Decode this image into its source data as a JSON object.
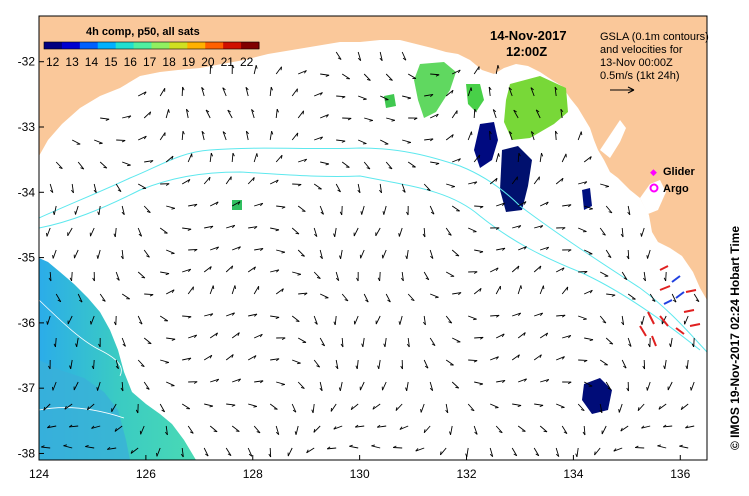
{
  "title": {
    "date": "14-Nov-2017",
    "time": "12:00Z"
  },
  "colorbar": {
    "title": "4h comp, p50, all sats",
    "ticks": [
      "12",
      "13",
      "14",
      "15",
      "16",
      "17",
      "18",
      "19",
      "20",
      "21",
      "22"
    ],
    "colors": [
      "#000080",
      "#0000d0",
      "#0060ff",
      "#00b0ff",
      "#20e0d0",
      "#50f0a0",
      "#90f060",
      "#d0e020",
      "#ffb000",
      "#ff6000",
      "#d01000",
      "#800000"
    ]
  },
  "legend": {
    "gsla_lines": [
      "GSLA (0.1m contours)",
      "and velocities for",
      "13-Nov 00:00Z",
      "0.5m/s (1kt 24h)"
    ],
    "glider_label": "Glider",
    "argo_label": "Argo",
    "glider_color": "#ff00ff",
    "argo_color": "#ff00ff"
  },
  "credit": "© IMOS 19-Nov-2017 02:24 Hobart Time",
  "axes": {
    "x_ticks": [
      124,
      126,
      128,
      130,
      132,
      134,
      136
    ],
    "y_ticks": [
      -32,
      -33,
      -34,
      -35,
      -36,
      -37,
      -38
    ],
    "x_range": [
      124,
      136.5
    ],
    "y_range": [
      -38.1,
      -31.3
    ]
  },
  "colors": {
    "land": "#fac89a",
    "contour": "#5ee8ee",
    "arrow": "#000000"
  }
}
